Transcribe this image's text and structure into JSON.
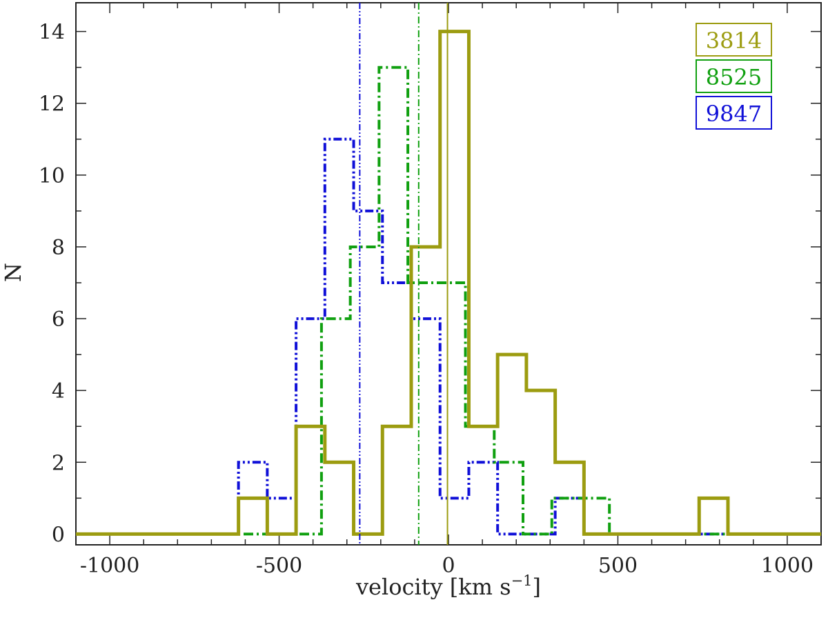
{
  "chart_data": {
    "type": "histogram",
    "xlabel": "velocity [km s",
    "xlabel_sup": "−1",
    "xlabel_close": "]",
    "ylabel": "N",
    "xlim": [
      -1100,
      1100
    ],
    "ylim": [
      -0.3,
      14.8
    ],
    "x_ticks": [
      -1000,
      -500,
      0,
      500,
      1000
    ],
    "x_tick_labels": [
      "-1000",
      "-500",
      "0",
      "500",
      "1000"
    ],
    "x_minor_step": 100,
    "y_ticks": [
      0,
      2,
      4,
      6,
      8,
      10,
      12,
      14
    ],
    "y_tick_labels": [
      "0",
      "2",
      "4",
      "6",
      "8",
      "10",
      "12",
      "14"
    ],
    "y_minor_step": 1,
    "legend_position": "top-right",
    "series": [
      {
        "name": "9847",
        "color": "#1010d8",
        "style": "dash-dot-dot",
        "bin_width": 85,
        "bin_edges": [
          -1100,
          -620,
          -535,
          -450,
          -365,
          -280,
          -195,
          -110,
          -25,
          60,
          145,
          230,
          315,
          400,
          485,
          1100
        ],
        "counts": [
          0,
          2,
          1,
          6,
          11,
          9,
          7,
          6,
          1,
          2,
          0,
          0,
          1,
          0,
          0
        ],
        "mean_velocity": -262
      },
      {
        "name": "8525",
        "color": "#10a010",
        "style": "dash-dot",
        "bin_width": 85,
        "bin_edges": [
          -1100,
          -375,
          -290,
          -205,
          -120,
          -35,
          50,
          135,
          220,
          305,
          390,
          475,
          560,
          1100
        ],
        "counts": [
          0,
          6,
          8,
          13,
          7,
          7,
          3,
          2,
          0,
          1,
          1,
          0,
          0
        ],
        "mean_velocity": -88
      },
      {
        "name": "3814",
        "color": "#9c9c10",
        "style": "solid",
        "bin_width": 85,
        "bin_edges": [
          -1100,
          -620,
          -535,
          -450,
          -365,
          -280,
          -195,
          -110,
          -25,
          60,
          145,
          230,
          315,
          400,
          485,
          570,
          655,
          740,
          825,
          1100
        ],
        "counts": [
          0,
          1,
          0,
          3,
          2,
          0,
          3,
          8,
          14,
          3,
          5,
          4,
          2,
          0,
          0,
          0,
          0,
          1,
          0
        ],
        "mean_velocity": -3
      }
    ]
  }
}
